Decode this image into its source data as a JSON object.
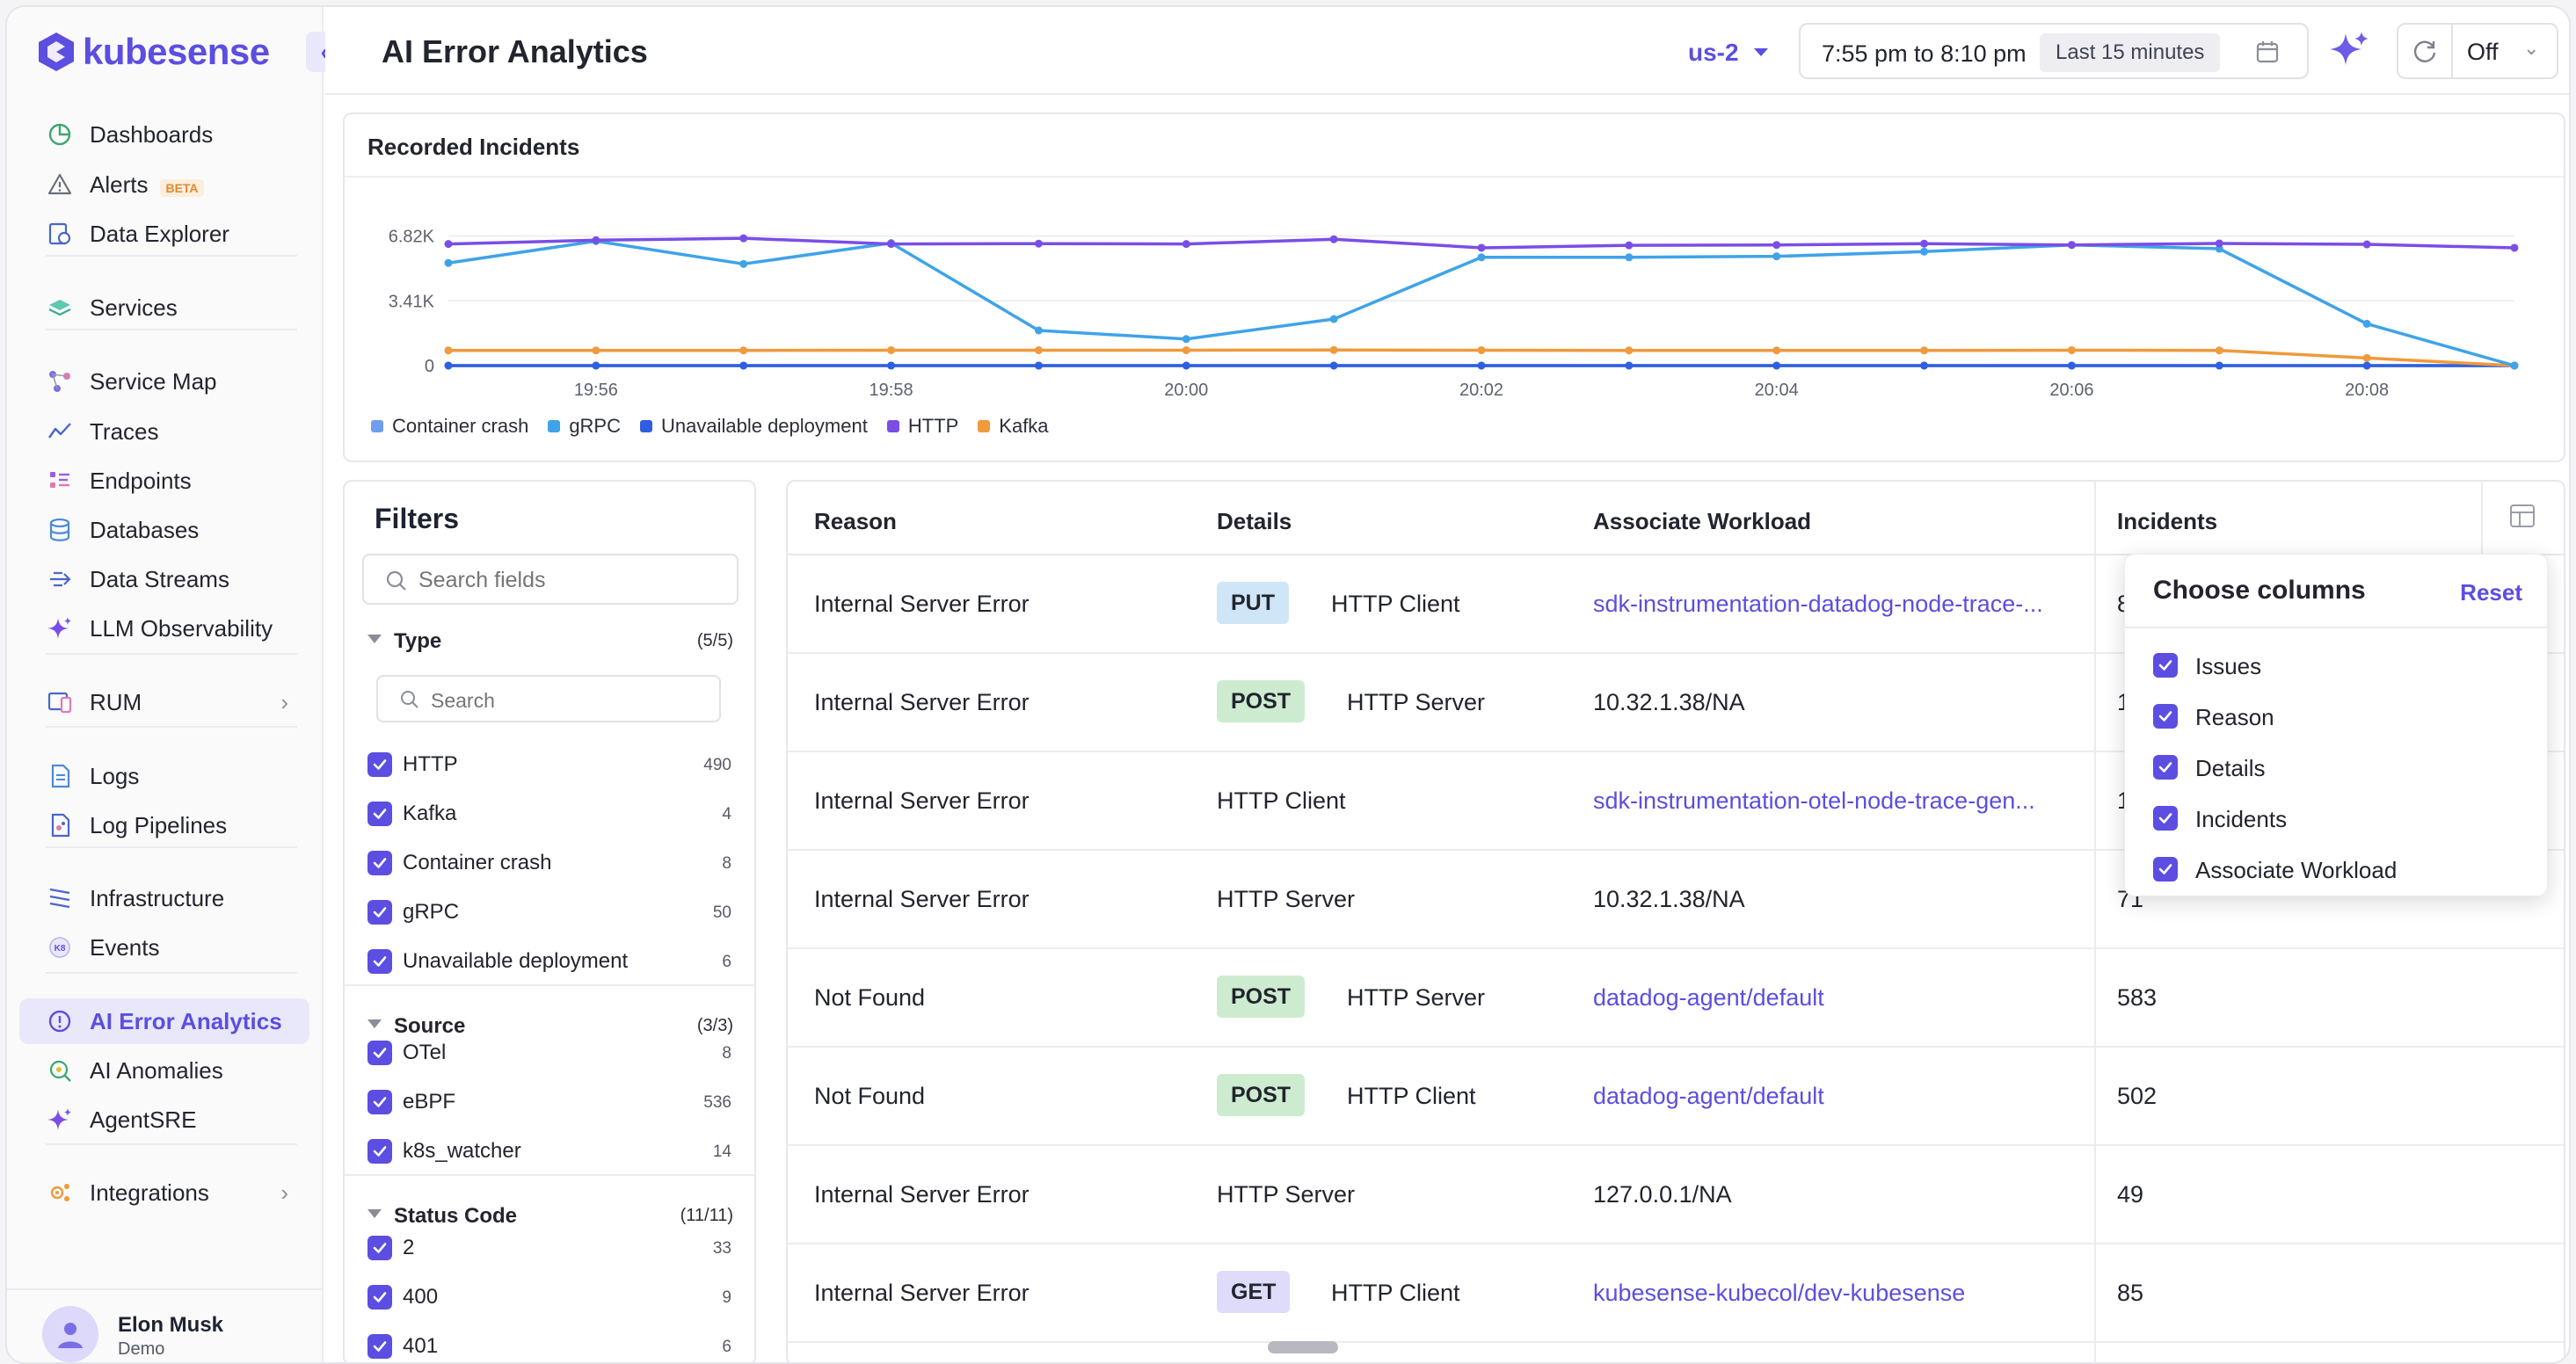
{
  "app": {
    "brand": "kubesense"
  },
  "sidebar": {
    "items": [
      {
        "label": "Dashboards",
        "icon": "dashboard-pie-icon"
      },
      {
        "label": "Alerts",
        "icon": "alert-triangle-icon",
        "badge": "BETA"
      },
      {
        "label": "Data Explorer",
        "icon": "data-explorer-icon"
      },
      {
        "label": "Services",
        "icon": "services-layers-icon"
      },
      {
        "label": "Service Map",
        "icon": "service-map-icon"
      },
      {
        "label": "Traces",
        "icon": "traces-icon"
      },
      {
        "label": "Endpoints",
        "icon": "endpoints-icon"
      },
      {
        "label": "Databases",
        "icon": "database-icon"
      },
      {
        "label": "Data Streams",
        "icon": "data-streams-icon"
      },
      {
        "label": "LLM Observability",
        "icon": "sparkle-icon"
      },
      {
        "label": "RUM",
        "icon": "rum-icon"
      },
      {
        "label": "Logs",
        "icon": "logs-icon"
      },
      {
        "label": "Log Pipelines",
        "icon": "log-pipelines-icon"
      },
      {
        "label": "Infrastructure",
        "icon": "infrastructure-icon"
      },
      {
        "label": "Events",
        "icon": "events-k8s-icon"
      },
      {
        "label": "AI Error Analytics",
        "icon": "error-alert-icon"
      },
      {
        "label": "AI Anomalies",
        "icon": "anomalies-icon"
      },
      {
        "label": "AgentSRE",
        "icon": "sparkle-icon"
      },
      {
        "label": "Integrations",
        "icon": "integrations-icon"
      }
    ],
    "user": {
      "name": "Elon Musk",
      "role": "Demo"
    }
  },
  "header": {
    "title": "AI Error Analytics",
    "region": "us-2",
    "time_range": "7:55 pm to 8:10 pm",
    "time_preset": "Last 15 minutes",
    "refresh": "Off"
  },
  "chart": {
    "title": "Recorded Incidents"
  },
  "chart_data": {
    "type": "line",
    "title": "Recorded Incidents",
    "x": [
      "19:55",
      "19:56",
      "19:57",
      "19:58",
      "19:59",
      "20:00",
      "20:01",
      "20:02",
      "20:03",
      "20:04",
      "20:05",
      "20:06",
      "20:07",
      "20:08",
      "20:09"
    ],
    "x_ticks": [
      "19:56",
      "19:58",
      "20:00",
      "20:02",
      "20:04",
      "20:06",
      "20:08"
    ],
    "y_ticks": [
      "0",
      "3.41K",
      "6.82K"
    ],
    "ylim": [
      0,
      7400
    ],
    "grid": true,
    "legend": "bottom-left",
    "series": [
      {
        "name": "Container crash",
        "color": "#6f9ef0",
        "values": [
          0,
          0,
          0,
          0,
          0,
          0,
          0,
          0,
          0,
          0,
          0,
          0,
          0,
          0,
          0
        ]
      },
      {
        "name": "gRPC",
        "color": "#3fa3e8",
        "values": [
          5400,
          6550,
          5350,
          6450,
          1850,
          1400,
          2450,
          5700,
          5700,
          5750,
          6000,
          6350,
          6150,
          2200,
          0
        ]
      },
      {
        "name": "Unavailable deployment",
        "color": "#2f5fe0",
        "values": [
          0,
          0,
          0,
          0,
          0,
          0,
          0,
          0,
          0,
          0,
          0,
          0,
          0,
          0,
          0
        ]
      },
      {
        "name": "HTTP",
        "color": "#7a4ee6",
        "values": [
          6400,
          6600,
          6700,
          6400,
          6420,
          6400,
          6650,
          6200,
          6330,
          6350,
          6420,
          6350,
          6430,
          6380,
          6200
        ]
      },
      {
        "name": "Kafka",
        "color": "#ef9a3c",
        "values": [
          800,
          800,
          800,
          810,
          810,
          810,
          820,
          810,
          800,
          800,
          800,
          810,
          800,
          400,
          0
        ]
      }
    ]
  },
  "filters": {
    "title": "Filters",
    "search_placeholder": "Search fields",
    "groups": [
      {
        "name": "Type",
        "count": "(5/5)",
        "search_placeholder": "Search",
        "options": [
          {
            "label": "HTTP",
            "count": "490"
          },
          {
            "label": "Kafka",
            "count": "4"
          },
          {
            "label": "Container crash",
            "count": "8"
          },
          {
            "label": "gRPC",
            "count": "50"
          },
          {
            "label": "Unavailable deployment",
            "count": "6"
          }
        ]
      },
      {
        "name": "Source",
        "count": "(3/3)",
        "options": [
          {
            "label": "OTel",
            "count": "8"
          },
          {
            "label": "eBPF",
            "count": "536"
          },
          {
            "label": "k8s_watcher",
            "count": "14"
          }
        ]
      },
      {
        "name": "Status Code",
        "count": "(11/11)",
        "options": [
          {
            "label": "2",
            "count": "33"
          },
          {
            "label": "400",
            "count": "9"
          },
          {
            "label": "401",
            "count": "6"
          }
        ]
      }
    ]
  },
  "table": {
    "headers": [
      "Reason",
      "Details",
      "Associate Workload",
      "Incidents"
    ],
    "rows": [
      {
        "reason": "Internal Server Error",
        "method": "PUT",
        "detail": "HTTP Client",
        "workload": "sdk-instrumentation-datadog-node-trace-...",
        "workload_link": true,
        "incidents": "8"
      },
      {
        "reason": "Internal Server Error",
        "method": "POST",
        "detail": "HTTP Server",
        "workload": "10.32.1.38/NA",
        "workload_link": false,
        "incidents": "1"
      },
      {
        "reason": "Internal Server Error",
        "method": "",
        "detail": "HTTP Client",
        "workload": "sdk-instrumentation-otel-node-trace-gen...",
        "workload_link": true,
        "incidents": "1"
      },
      {
        "reason": "Internal Server Error",
        "method": "",
        "detail": "HTTP Server",
        "workload": "10.32.1.38/NA",
        "workload_link": false,
        "incidents": "71"
      },
      {
        "reason": "Not Found",
        "method": "POST",
        "detail": "HTTP Server",
        "workload": "datadog-agent/default",
        "workload_link": true,
        "incidents": "583"
      },
      {
        "reason": "Not Found",
        "method": "POST",
        "detail": "HTTP Client",
        "workload": "datadog-agent/default",
        "workload_link": true,
        "incidents": "502"
      },
      {
        "reason": "Internal Server Error",
        "method": "",
        "detail": "HTTP Server",
        "workload": "127.0.0.1/NA",
        "workload_link": false,
        "incidents": "49"
      },
      {
        "reason": "Internal Server Error",
        "method": "GET",
        "detail": "HTTP Client",
        "workload": "kubesense-kubecol/dev-kubesense",
        "workload_link": true,
        "incidents": "85"
      }
    ]
  },
  "column_chooser": {
    "title": "Choose columns",
    "reset": "Reset",
    "options": [
      "Issues",
      "Reason",
      "Details",
      "Incidents",
      "Associate Workload"
    ]
  }
}
